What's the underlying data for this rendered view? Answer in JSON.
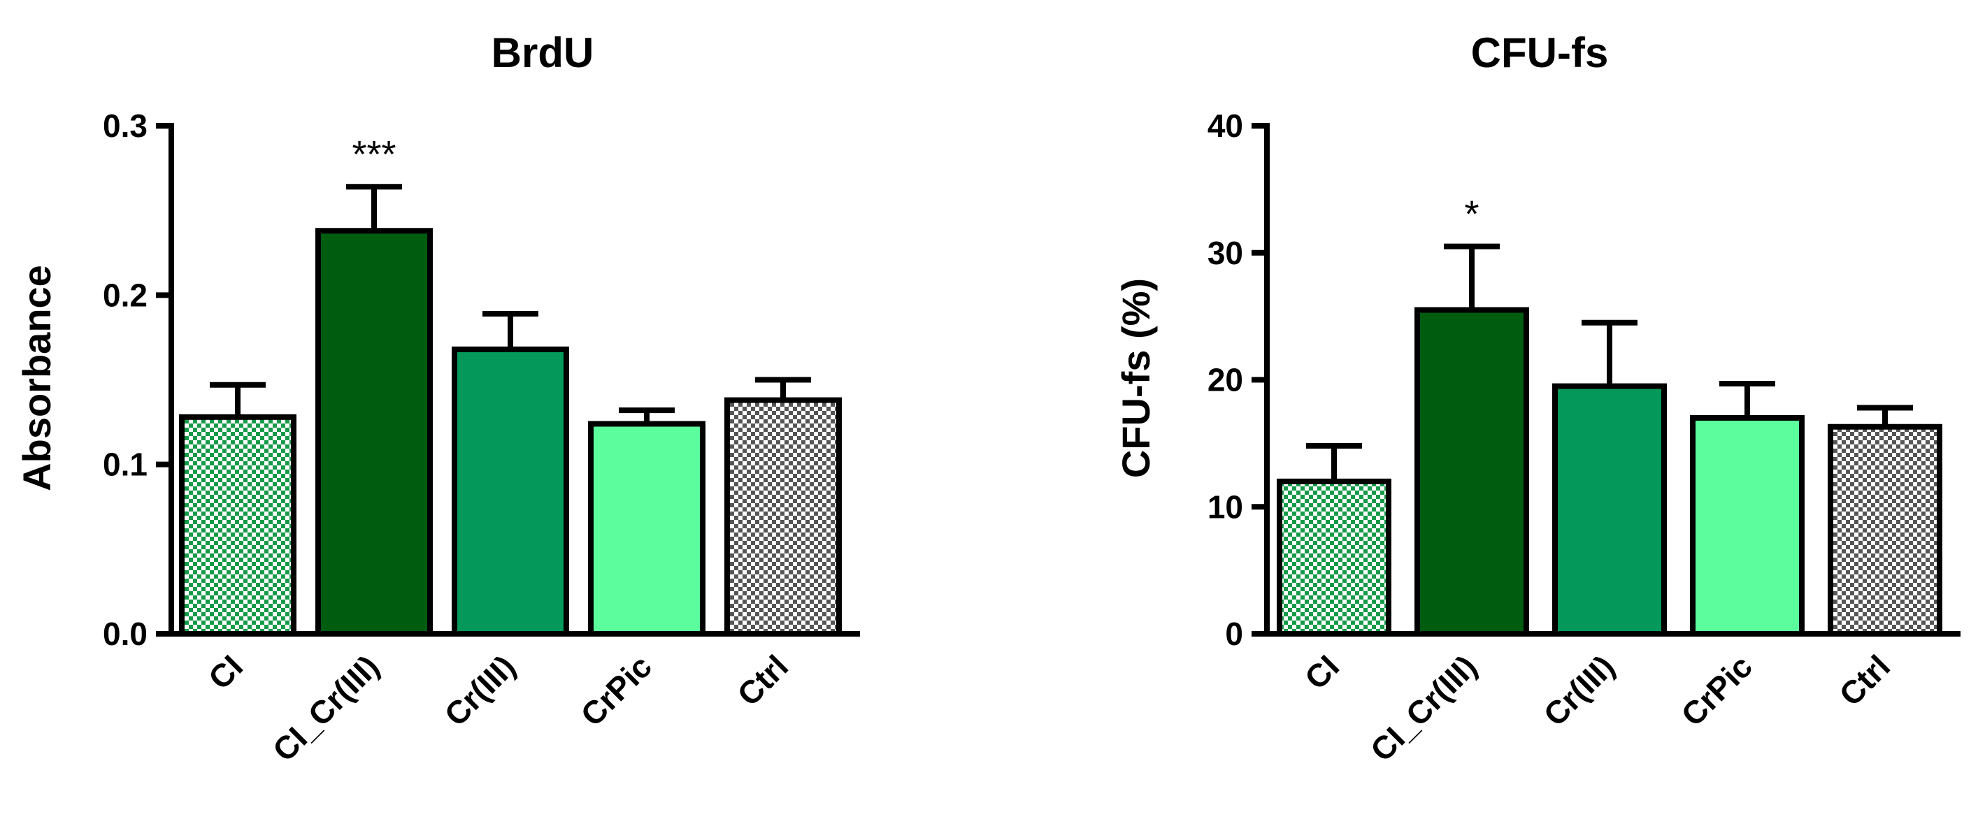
{
  "chart_data": [
    {
      "type": "bar",
      "title": "BrdU",
      "xlabel": "",
      "ylabel": "Absorbance",
      "ylim": [
        0,
        0.3
      ],
      "yticks": [
        0.0,
        0.1,
        0.2,
        0.3
      ],
      "ytick_labels": [
        "0.0",
        "0.1",
        "0.2",
        "0.3"
      ],
      "categories": [
        "CI",
        "CI_Cr(III)",
        "Cr(III)",
        "CrPic",
        "Ctrl"
      ],
      "values": [
        0.128,
        0.238,
        0.168,
        0.124,
        0.138
      ],
      "errors": [
        0.019,
        0.026,
        0.021,
        0.008,
        0.012
      ],
      "annotations": [
        "",
        "***",
        "",
        "",
        ""
      ],
      "bar_fills": [
        "checker-green",
        "#005c0e",
        "#04985a",
        "#5bfd9c",
        "checker-grey"
      ],
      "grid": false,
      "legend": "none"
    },
    {
      "type": "bar",
      "title": "CFU-fs",
      "xlabel": "",
      "ylabel": "CFU-fs (%)",
      "ylim": [
        0,
        40
      ],
      "yticks": [
        0,
        10,
        20,
        30,
        40
      ],
      "ytick_labels": [
        "0",
        "10",
        "20",
        "30",
        "40"
      ],
      "categories": [
        "CI",
        "CI_Cr(III)",
        "Cr(III)",
        "CrPic",
        "Ctrl"
      ],
      "values": [
        12.0,
        25.5,
        19.5,
        17.0,
        16.3
      ],
      "errors": [
        2.8,
        5.0,
        5.0,
        2.7,
        1.5
      ],
      "annotations": [
        "",
        "*",
        "",
        "",
        ""
      ],
      "bar_fills": [
        "checker-green",
        "#005c0e",
        "#04985a",
        "#5bfd9c",
        "checker-grey"
      ],
      "grid": false,
      "legend": "none"
    }
  ]
}
